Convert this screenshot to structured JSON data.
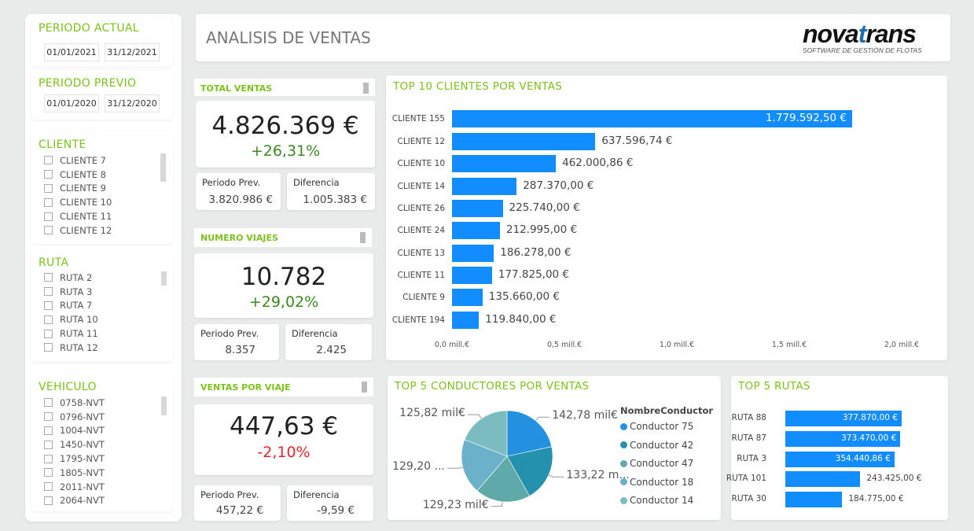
{
  "filters": {
    "periodo_actual": {
      "title": "PERIODO ACTUAL",
      "from": "01/01/2021",
      "to": "31/12/2021"
    },
    "periodo_previo": {
      "title": "PERIODO PREVIO",
      "from": "01/01/2020",
      "to": "31/12/2020"
    },
    "cliente": {
      "title": "CLIENTE",
      "items": [
        "CLIENTE 7",
        "CLIENTE 8",
        "CLIENTE 9",
        "CLIENTE 10",
        "CLIENTE 11",
        "CLIENTE 12"
      ]
    },
    "ruta": {
      "title": "RUTA",
      "items": [
        "RUTA 2",
        "RUTA 3",
        "RUTA 7",
        "RUTA 10",
        "RUTA 11",
        "RUTA 12"
      ]
    },
    "vehiculo": {
      "title": "VEHICULO",
      "items": [
        "0758-NVT",
        "0796-NVT",
        "1004-NVT",
        "1450-NVT",
        "1795-NVT",
        "1805-NVT",
        "2011-NVT",
        "2064-NVT"
      ]
    }
  },
  "header": {
    "title": "ANALISIS DE VENTAS",
    "logo_text": "novatrans",
    "logo_tagline": "SOFTWARE DE GESTIÓN DE FLOTAS"
  },
  "kpis": [
    {
      "title": "TOTAL VENTAS",
      "value": "4.826.369 €",
      "change": "+26,31%",
      "change_color": "#3a8a1e",
      "prev_label": "Periodo Prev.",
      "prev_value": "3.820.986 €",
      "diff_label": "Diferencia",
      "diff_value": "1.005.383 €"
    },
    {
      "title": "NUMERO VIAJES",
      "value": "10.782",
      "change": "+29,02%",
      "change_color": "#3a8a1e",
      "prev_label": "Periodo Prev.",
      "prev_value": "8.357",
      "diff_label": "Diferencia",
      "diff_value": "2.425"
    },
    {
      "title": "VENTAS POR VIAJE",
      "value": "447,63 €",
      "change": "-2,10%",
      "change_color": "#e8262a",
      "prev_label": "Periodo Prev.",
      "prev_value": "457,22 €",
      "diff_label": "Diferencia",
      "diff_value": "-9,59 €"
    }
  ],
  "chart_data": [
    {
      "type": "bar",
      "orientation": "horizontal",
      "title": "TOP 10 CLIENTES POR VENTAS",
      "categories": [
        "CLIENTE 155",
        "CLIENTE 12",
        "CLIENTE 10",
        "CLIENTE 14",
        "CLIENTE 26",
        "CLIENTE 24",
        "CLIENTE 13",
        "CLIENTE 11",
        "CLIENTE 9",
        "CLIENTE 194"
      ],
      "values": [
        1779592.5,
        637596.74,
        462000.86,
        287370.0,
        225740.0,
        212995.0,
        186278.0,
        177825.0,
        135660.0,
        119840.0
      ],
      "data_labels": [
        "1.779.592,50 €",
        "637.596,74 €",
        "462.000,86 €",
        "287.370,00 €",
        "225.740,00 €",
        "212.995,00 €",
        "186.278,00 €",
        "177.825,00 €",
        "135.660,00 €",
        "119.840,00 €"
      ],
      "xlim": [
        0,
        2000000
      ],
      "x_ticks": [
        0,
        500000,
        1000000,
        1500000,
        2000000
      ],
      "x_tick_labels": [
        "0,0 mill.€",
        "0,5 mill.€",
        "1,0 mill.€",
        "1,5 mill.€",
        "2,0 mill.€"
      ],
      "color": "#118dff"
    },
    {
      "type": "pie",
      "title": "TOP 5 CONDUCTORES POR VENTAS",
      "legend_title": "NombreConductor",
      "legend_position": "right",
      "categories": [
        "Conductor 75",
        "Conductor 42",
        "Conductor 47",
        "Conductor 18",
        "Conductor 14"
      ],
      "values": [
        142780,
        133220,
        129230,
        129200,
        125820
      ],
      "data_labels": [
        "142,78 mil€",
        "133,22 m...",
        "129,23 mil€",
        "129,20 ...",
        "125,82 mil€"
      ],
      "colors": [
        "#2490e0",
        "#2492ae",
        "#5fa9a9",
        "#6ab1c9",
        "#7bbcc0"
      ]
    },
    {
      "type": "bar",
      "orientation": "horizontal",
      "title": "TOP 5 RUTAS",
      "categories": [
        "RUTA 88",
        "RUTA 87",
        "RUTA 3",
        "RUTA 101",
        "RUTA 30"
      ],
      "values": [
        377870.0,
        373470.0,
        354440.86,
        243425.0,
        184775.0
      ],
      "data_labels": [
        "377.870,00 €",
        "373.470,00 €",
        "354.440,86 €",
        "243.425,00 €",
        "184.775,00 €"
      ],
      "color": "#118dff"
    }
  ]
}
